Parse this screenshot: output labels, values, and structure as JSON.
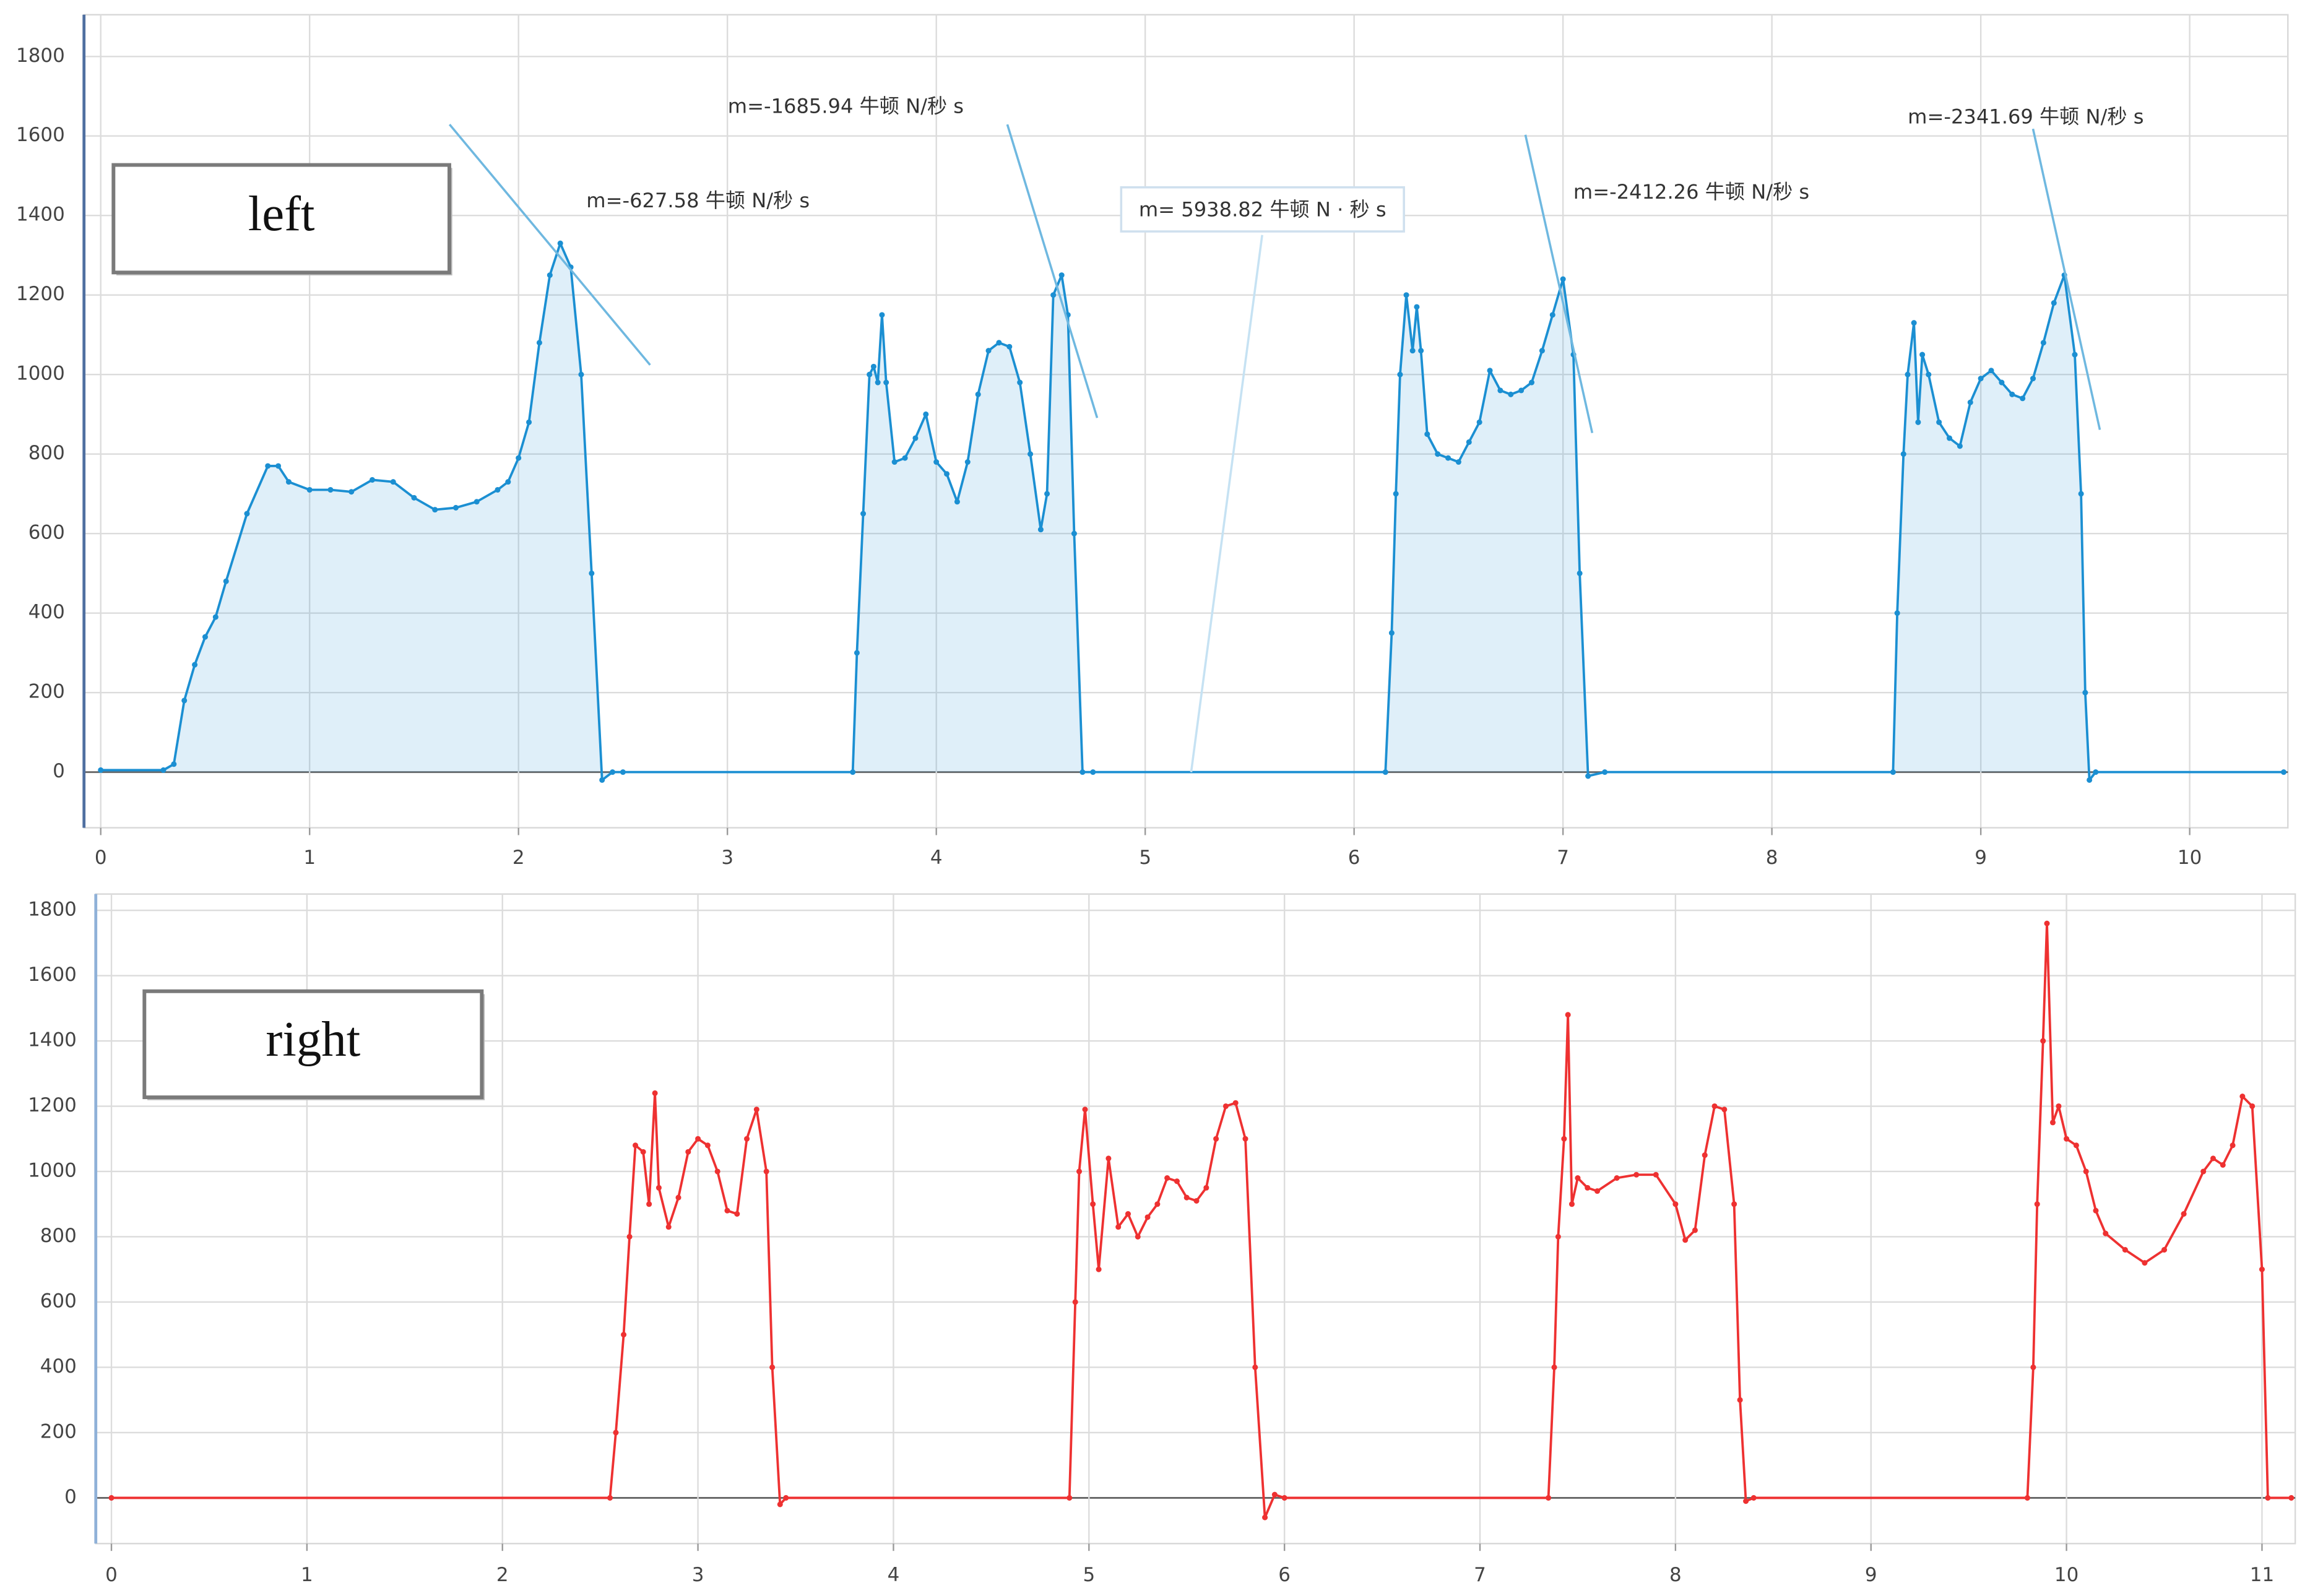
{
  "chart_data": [
    {
      "type": "line",
      "label": "left",
      "area": true,
      "markers": true,
      "grid": true,
      "xlim": [
        -0.08,
        10.47
      ],
      "ylim": [
        -140,
        1905
      ],
      "xticks": [
        0,
        1,
        2,
        3,
        4,
        5,
        6,
        7,
        8,
        9,
        10
      ],
      "yticks": [
        0,
        200,
        400,
        600,
        800,
        1000,
        1200,
        1400,
        1600,
        1800
      ],
      "x": [
        0,
        0.3,
        0.35,
        0.4,
        0.45,
        0.5,
        0.55,
        0.6,
        0.7,
        0.8,
        0.85,
        0.9,
        1.0,
        1.1,
        1.2,
        1.3,
        1.4,
        1.5,
        1.6,
        1.7,
        1.8,
        1.9,
        1.95,
        2.0,
        2.05,
        2.1,
        2.15,
        2.2,
        2.25,
        2.3,
        2.35,
        2.4,
        2.45,
        2.5,
        3.6,
        3.62,
        3.65,
        3.68,
        3.7,
        3.72,
        3.74,
        3.76,
        3.8,
        3.85,
        3.9,
        3.95,
        4.0,
        4.05,
        4.1,
        4.15,
        4.2,
        4.25,
        4.3,
        4.35,
        4.4,
        4.45,
        4.5,
        4.53,
        4.56,
        4.6,
        4.63,
        4.66,
        4.7,
        4.75,
        6.15,
        6.18,
        6.2,
        6.22,
        6.25,
        6.28,
        6.3,
        6.32,
        6.35,
        6.4,
        6.45,
        6.5,
        6.55,
        6.6,
        6.65,
        6.7,
        6.75,
        6.8,
        6.85,
        6.9,
        6.95,
        7.0,
        7.05,
        7.08,
        7.12,
        7.2,
        8.58,
        8.6,
        8.63,
        8.65,
        8.68,
        8.7,
        8.72,
        8.75,
        8.8,
        8.85,
        8.9,
        8.95,
        9.0,
        9.05,
        9.1,
        9.15,
        9.2,
        9.25,
        9.3,
        9.35,
        9.4,
        9.45,
        9.48,
        9.5,
        9.52,
        9.55,
        10.45
      ],
      "series": [
        {
          "color": "#1b8fd2",
          "values": [
            5,
            5,
            20,
            180,
            270,
            340,
            390,
            480,
            650,
            770,
            770,
            730,
            710,
            710,
            705,
            735,
            730,
            690,
            660,
            665,
            680,
            710,
            730,
            790,
            880,
            1080,
            1250,
            1330,
            1270,
            1000,
            500,
            -20,
            0,
            0,
            0,
            300,
            650,
            1000,
            1020,
            980,
            1150,
            980,
            780,
            790,
            840,
            900,
            780,
            750,
            680,
            780,
            950,
            1060,
            1080,
            1070,
            980,
            800,
            610,
            700,
            1200,
            1250,
            1150,
            600,
            0,
            0,
            0,
            350,
            700,
            1000,
            1200,
            1060,
            1170,
            1060,
            850,
            800,
            790,
            780,
            830,
            880,
            1010,
            960,
            950,
            960,
            980,
            1060,
            1150,
            1240,
            1050,
            500,
            -10,
            0,
            0,
            400,
            800,
            1000,
            1130,
            880,
            1050,
            1000,
            880,
            840,
            820,
            930,
            990,
            1010,
            980,
            950,
            940,
            990,
            1080,
            1180,
            1250,
            1050,
            700,
            200,
            -20,
            0,
            0
          ]
        }
      ],
      "annotations": [
        {
          "text": "m=-627.58 牛顿 N/秒 s",
          "line_x": [
            1.67,
            2.63
          ],
          "line_y": [
            1629,
            1024
          ],
          "line_color": "#6fb8e0"
        },
        {
          "text": "m=-1685.94 牛顿 N/秒 s",
          "line_x": [
            4.34,
            4.77
          ],
          "line_y": [
            1629,
            891
          ],
          "line_color": "#6fb8e0"
        },
        {
          "text": "m= 5938.82 牛顿 N · 秒 s",
          "line_x": [
            5.22,
            5.56
          ],
          "line_y": [
            0,
            1351
          ],
          "line_color": "#c6e2f3",
          "boxed": true
        },
        {
          "text": "m=-2412.26 牛顿 N/秒 s",
          "line_x": [
            6.82,
            7.14
          ],
          "line_y": [
            1603,
            853
          ],
          "line_color": "#6fb8e0"
        },
        {
          "text": "m=-2341.69 牛顿 N/秒 s",
          "line_x": [
            9.25,
            9.57
          ],
          "line_y": [
            1618,
            861
          ],
          "line_color": "#6fb8e0"
        }
      ]
    },
    {
      "type": "line",
      "label": "right",
      "area": false,
      "markers": true,
      "grid": true,
      "xlim": [
        -0.08,
        11.17
      ],
      "ylim": [
        -140,
        1850
      ],
      "xticks": [
        0,
        1,
        2,
        3,
        4,
        5,
        6,
        7,
        8,
        9,
        10,
        11
      ],
      "yticks": [
        0,
        200,
        400,
        600,
        800,
        1000,
        1200,
        1400,
        1600,
        1800
      ],
      "x": [
        0,
        2.55,
        2.58,
        2.62,
        2.65,
        2.68,
        2.72,
        2.75,
        2.78,
        2.8,
        2.85,
        2.9,
        2.95,
        3.0,
        3.05,
        3.1,
        3.15,
        3.2,
        3.25,
        3.3,
        3.35,
        3.38,
        3.42,
        3.45,
        4.9,
        4.93,
        4.95,
        4.98,
        5.02,
        5.05,
        5.1,
        5.15,
        5.2,
        5.25,
        5.3,
        5.35,
        5.4,
        5.45,
        5.5,
        5.55,
        5.6,
        5.65,
        5.7,
        5.75,
        5.8,
        5.85,
        5.9,
        5.95,
        6.0,
        7.35,
        7.38,
        7.4,
        7.43,
        7.45,
        7.47,
        7.5,
        7.55,
        7.6,
        7.7,
        7.8,
        7.9,
        8.0,
        8.05,
        8.1,
        8.15,
        8.2,
        8.25,
        8.3,
        8.33,
        8.36,
        8.4,
        9.8,
        9.83,
        9.85,
        9.88,
        9.9,
        9.93,
        9.96,
        10.0,
        10.05,
        10.1,
        10.15,
        10.2,
        10.3,
        10.4,
        10.5,
        10.6,
        10.7,
        10.75,
        10.8,
        10.85,
        10.9,
        10.95,
        11.0,
        11.03,
        11.15
      ],
      "series": [
        {
          "color": "#ee3131",
          "values": [
            0,
            0,
            200,
            500,
            800,
            1080,
            1060,
            900,
            1240,
            950,
            830,
            920,
            1060,
            1100,
            1080,
            1000,
            880,
            870,
            1100,
            1190,
            1000,
            400,
            -20,
            0,
            0,
            600,
            1000,
            1190,
            900,
            700,
            1040,
            830,
            870,
            800,
            860,
            900,
            980,
            970,
            920,
            910,
            950,
            1100,
            1200,
            1210,
            1100,
            400,
            -60,
            10,
            0,
            0,
            400,
            800,
            1100,
            1480,
            900,
            980,
            950,
            940,
            980,
            990,
            990,
            900,
            790,
            820,
            1050,
            1200,
            1190,
            900,
            300,
            -10,
            0,
            0,
            400,
            900,
            1400,
            1760,
            1150,
            1200,
            1100,
            1080,
            1000,
            880,
            810,
            760,
            720,
            760,
            870,
            1000,
            1040,
            1020,
            1080,
            1230,
            1200,
            700,
            0,
            0
          ]
        }
      ],
      "annotations": []
    }
  ]
}
